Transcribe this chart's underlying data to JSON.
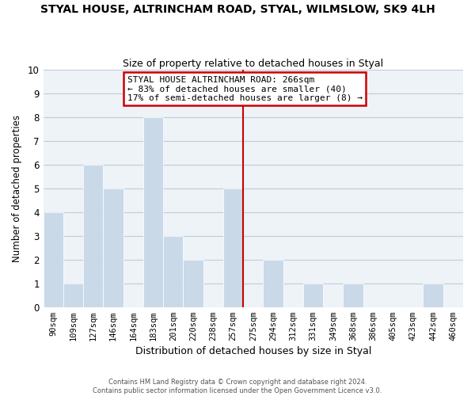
{
  "title": "STYAL HOUSE, ALTRINCHAM ROAD, STYAL, WILMSLOW, SK9 4LH",
  "subtitle": "Size of property relative to detached houses in Styal",
  "xlabel": "Distribution of detached houses by size in Styal",
  "ylabel": "Number of detached properties",
  "bar_labels": [
    "90sqm",
    "109sqm",
    "127sqm",
    "146sqm",
    "164sqm",
    "183sqm",
    "201sqm",
    "220sqm",
    "238sqm",
    "257sqm",
    "275sqm",
    "294sqm",
    "312sqm",
    "331sqm",
    "349sqm",
    "368sqm",
    "386sqm",
    "405sqm",
    "423sqm",
    "442sqm",
    "460sqm"
  ],
  "bar_heights": [
    4,
    1,
    6,
    5,
    0,
    8,
    3,
    2,
    0,
    5,
    0,
    2,
    0,
    1,
    0,
    1,
    0,
    0,
    0,
    1,
    0
  ],
  "bar_color": "#c9d9e8",
  "bar_edge_color": "#ffffff",
  "grid_color": "#c0ccd8",
  "vline_x": 9.5,
  "vline_color": "#cc0000",
  "annotation_title": "STYAL HOUSE ALTRINCHAM ROAD: 266sqm",
  "annotation_line2": "← 83% of detached houses are smaller (40)",
  "annotation_line3": "17% of semi-detached houses are larger (8) →",
  "annotation_box_color": "#ffffff",
  "annotation_box_edge": "#cc0000",
  "ylim": [
    0,
    10
  ],
  "yticks": [
    0,
    1,
    2,
    3,
    4,
    5,
    6,
    7,
    8,
    9,
    10
  ],
  "fig_bg": "#ffffff",
  "ax_bg": "#eef3f8",
  "footer1": "Contains HM Land Registry data © Crown copyright and database right 2024.",
  "footer2": "Contains public sector information licensed under the Open Government Licence v3.0."
}
